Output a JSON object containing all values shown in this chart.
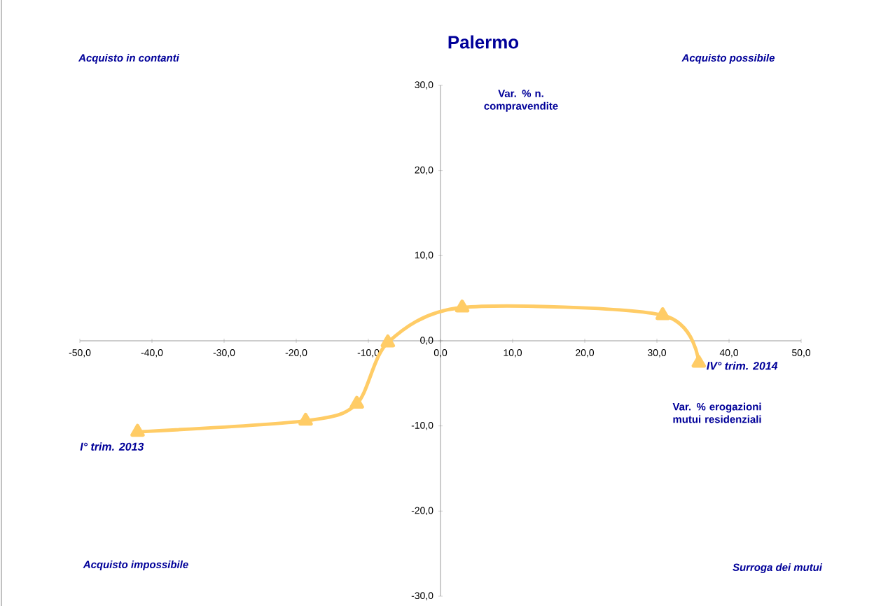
{
  "chart_data": {
    "type": "line",
    "title": "Palermo",
    "xlabel": "Var. % erogazioni mutui residenziali",
    "ylabel": "Var. % n. compravendite",
    "x": [
      -42.0,
      -18.7,
      -11.6,
      -7.3,
      3.0,
      30.8,
      35.8
    ],
    "series": [
      {
        "color": "#ffcc66",
        "values": [
          -10.7,
          -9.4,
          -7.4,
          -0.2,
          3.9,
          3.0,
          -2.6
        ]
      }
    ],
    "marker": "triangle",
    "line_style": "solid",
    "grid": false,
    "xlim": [
      -50,
      50
    ],
    "ylim": [
      -30,
      30
    ],
    "xticks": [
      {
        "value": -50,
        "label": "-50,0"
      },
      {
        "value": -40,
        "label": "-40,0"
      },
      {
        "value": -30,
        "label": "-30,0"
      },
      {
        "value": -20,
        "label": "-20,0"
      },
      {
        "value": -10,
        "label": "-10,0"
      },
      {
        "value": 0,
        "label": "0,0"
      },
      {
        "value": 10,
        "label": "10,0"
      },
      {
        "value": 20,
        "label": "20,0"
      },
      {
        "value": 30,
        "label": "30,0"
      },
      {
        "value": 40,
        "label": "40,0"
      },
      {
        "value": 50,
        "label": "50,0"
      }
    ],
    "yticks": [
      {
        "value": -30,
        "label": "-30,0"
      },
      {
        "value": -20,
        "label": "-20,0"
      },
      {
        "value": -10,
        "label": "-10,0"
      },
      {
        "value": 0,
        "label": "0,0"
      },
      {
        "value": 10,
        "label": "10,0"
      },
      {
        "value": 20,
        "label": "20,0"
      },
      {
        "value": 30,
        "label": "30,0"
      }
    ],
    "annotations": [
      "Acquisto in contanti",
      "Acquisto possibile",
      "Acquisto impossibile",
      "Surroga dei mutui",
      {
        "text": "I° trim. 2013",
        "x": -42.0,
        "y": -10.7
      },
      {
        "text": "IV° trim. 2014",
        "x": 35.8,
        "y": -2.6
      }
    ]
  }
}
